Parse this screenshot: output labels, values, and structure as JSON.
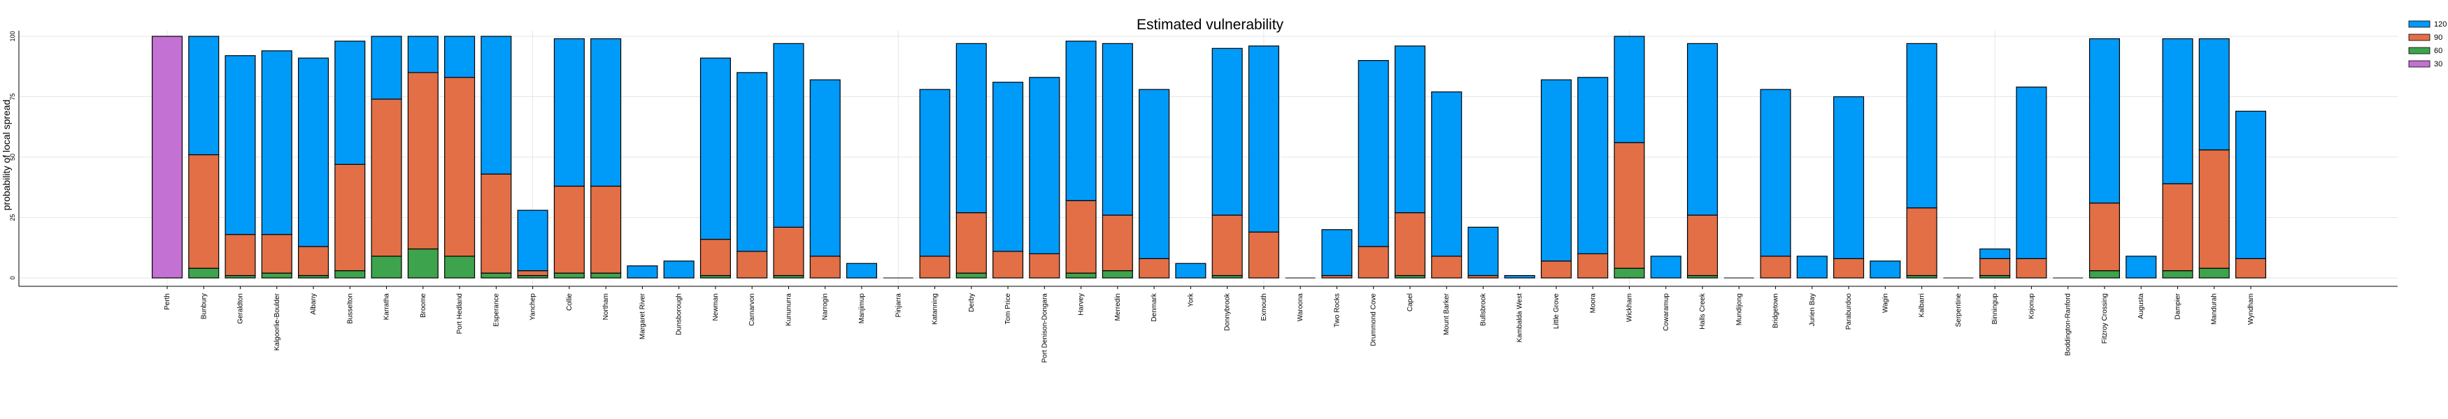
{
  "chart_data": {
    "type": "bar",
    "stacked": true,
    "title": "Estimated vulnerability",
    "xlabel": "",
    "ylabel": "probability of local spread",
    "ylim": [
      0,
      100
    ],
    "yticks": [
      0,
      25,
      50,
      75,
      100
    ],
    "grid": true,
    "legend_position": "top-right",
    "categories": [
      "Perth",
      "Bunbury",
      "Geraldton",
      "Kalgoorlie-Boulder",
      "Albany",
      "Busselton",
      "Karratha",
      "Broome",
      "Port Hedland",
      "Esperance",
      "Yanchep",
      "Collie",
      "Northam",
      "Margaret River",
      "Dunsborough",
      "Newman",
      "Carnarvon",
      "Kununurra",
      "Narrogin",
      "Manjimup",
      "Pinjarra",
      "Katanning",
      "Derby",
      "Tom Price",
      "Port Denison-Dongara",
      "Harvey",
      "Merredin",
      "Denmark",
      "York",
      "Donnybrook",
      "Exmouth",
      "Waroona",
      "Two Rocks",
      "Drummond Cove",
      "Capel",
      "Mount Barker",
      "Bullsbrook",
      "Kambalda West",
      "Little Grove",
      "Moora",
      "Wickham",
      "Cowaramup",
      "Halls Creek",
      "Mundijong",
      "Bridgetown",
      "Jurien Bay",
      "Paraburdoo",
      "Wagin",
      "Kalbarri",
      "Serpentine",
      "Binningup",
      "Kojonup",
      "Boddington-Ranford",
      "Fitzroy Crossing",
      "Augusta",
      "Dampier",
      "Mandurah",
      "Wyndham"
    ],
    "series": [
      {
        "name": "30",
        "color": "#c371d2",
        "values": [
          100,
          0,
          0,
          0,
          0,
          0,
          0,
          0,
          0,
          0,
          0,
          0,
          0,
          0,
          0,
          0,
          0,
          0,
          0,
          0,
          0,
          0,
          0,
          0,
          0,
          0,
          0,
          0,
          0,
          0,
          0,
          0,
          0,
          0,
          0,
          0,
          0,
          0,
          0,
          0,
          0,
          0,
          0,
          0,
          0,
          0,
          0,
          0,
          0,
          0,
          0,
          0,
          0,
          0,
          0,
          0,
          0,
          0
        ]
      },
      {
        "name": "60",
        "color": "#3da44d",
        "values": [
          0,
          4,
          1,
          2,
          1,
          3,
          9,
          12,
          9,
          2,
          1,
          2,
          2,
          0,
          0,
          1,
          0,
          1,
          0,
          0,
          0,
          0,
          2,
          0,
          0,
          2,
          3,
          0,
          0,
          1,
          0,
          0,
          0,
          0,
          1,
          0,
          0,
          0,
          0,
          0,
          4,
          0,
          1,
          0,
          0,
          0,
          0,
          0,
          1,
          0,
          1,
          0,
          0,
          3,
          0,
          3,
          4,
          0
        ]
      },
      {
        "name": "90",
        "color": "#e26f46",
        "values": [
          0,
          47,
          17,
          16,
          12,
          44,
          65,
          73,
          74,
          41,
          2,
          36,
          36,
          0,
          0,
          15,
          11,
          20,
          9,
          0,
          0,
          9,
          25,
          11,
          10,
          30,
          23,
          8,
          0,
          25,
          19,
          0,
          1,
          13,
          26,
          9,
          1,
          0,
          7,
          10,
          52,
          0,
          25,
          0,
          9,
          0,
          8,
          0,
          28,
          0,
          7,
          8,
          0,
          28,
          0,
          36,
          49,
          8
        ]
      },
      {
        "name": "120",
        "color": "#009af9",
        "values": [
          0,
          49,
          74,
          76,
          78,
          51,
          26,
          15,
          17,
          57,
          25,
          61,
          61,
          5,
          7,
          75,
          74,
          76,
          73,
          6,
          0,
          69,
          70,
          70,
          73,
          66,
          71,
          70,
          6,
          69,
          77,
          0,
          19,
          77,
          69,
          68,
          20,
          1,
          75,
          73,
          44,
          9,
          71,
          0,
          69,
          9,
          67,
          7,
          68,
          0,
          4,
          71,
          0,
          68,
          9,
          60,
          46,
          61
        ]
      }
    ],
    "legend_order": [
      "120",
      "90",
      "60",
      "30"
    ]
  }
}
